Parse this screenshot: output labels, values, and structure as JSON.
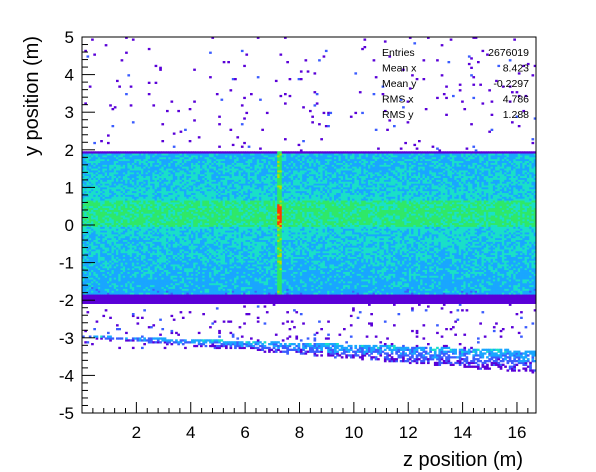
{
  "chart_data": {
    "type": "heatmap",
    "title": "",
    "xlabel": "z position (m)",
    "ylabel": "y position (m)",
    "xlim": [
      0,
      16.7
    ],
    "ylim": [
      -5,
      5
    ],
    "x_ticks": [
      2,
      4,
      6,
      8,
      10,
      12,
      14,
      16
    ],
    "y_ticks": [
      -5,
      -4,
      -3,
      -2,
      -1,
      0,
      1,
      2,
      3,
      4,
      5
    ],
    "x_tick_labels": [
      "2",
      "4",
      "6",
      "8",
      "10",
      "12",
      "14",
      "16"
    ],
    "y_tick_labels": [
      "-5",
      "-4",
      "-3",
      "-2",
      "-1",
      "0",
      "1",
      "2",
      "3",
      "4",
      "5"
    ],
    "grid": false,
    "color_scale": [
      "#5a00d8",
      "#3a5cff",
      "#19a6ff",
      "#19e0c8",
      "#2fe868",
      "#b7e000",
      "#ff3a00"
    ],
    "regions": [
      {
        "name": "dense band",
        "y_range": [
          -1.9,
          1.9
        ],
        "x_range": [
          0,
          16.7
        ],
        "level": "high, peak near y = 0.3"
      },
      {
        "name": "upper edge",
        "y": 1.9,
        "level": "low"
      },
      {
        "name": "lower edge",
        "y_range": [
          -2.1,
          -1.85
        ],
        "level": "low"
      },
      {
        "name": "hot stripe",
        "x": 7.2,
        "y_range": [
          -1.85,
          1.85
        ],
        "level": "very high"
      },
      {
        "name": "floor tail",
        "y_top_at_x0": -2.95,
        "y_top_at_xmax": -3.35,
        "y_bottom_at_x0": -3.0,
        "y_bottom_at_xmax": -3.95
      },
      {
        "name": "sparse hits",
        "y_range": [
          -3.2,
          5
        ],
        "level": "scattered"
      }
    ],
    "stats": [
      {
        "label": "Entries",
        "value": "2676019"
      },
      {
        "label": "Mean x",
        "value": "8.423"
      },
      {
        "label": "Mean y",
        "value": "-0.2297"
      },
      {
        "label": "RMS x",
        "value": "4.786"
      },
      {
        "label": "RMS y",
        "value": "1.288"
      }
    ]
  }
}
